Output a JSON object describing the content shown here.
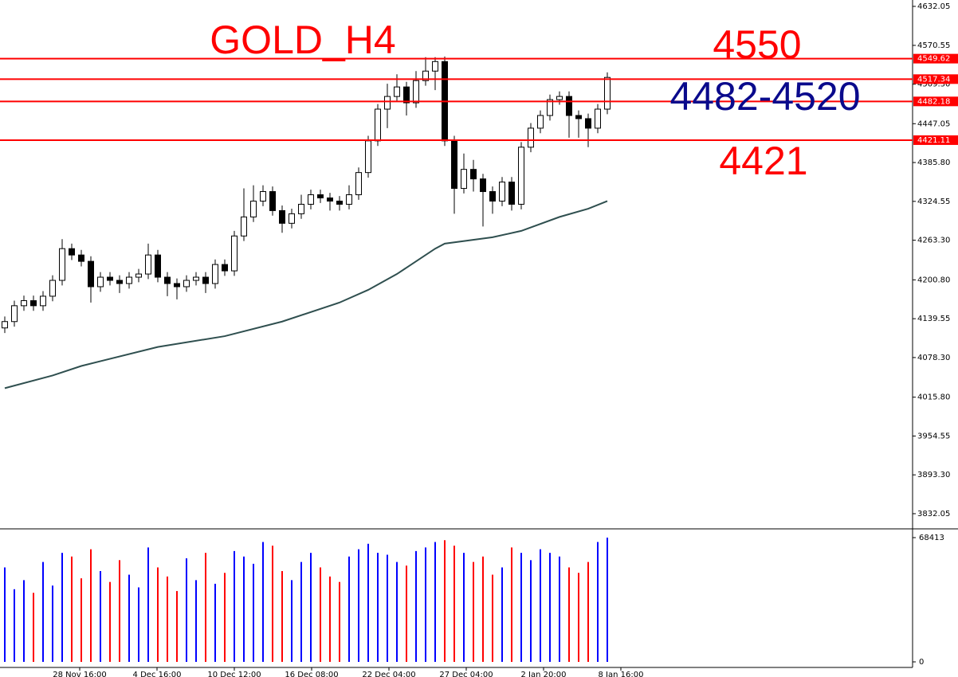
{
  "chart_data": {
    "type": "candlestick",
    "title": "GOLD_H4",
    "annotations": [
      {
        "text": "4550",
        "color": "#ff0000"
      },
      {
        "text": "4482-4520",
        "color": "#0a0a8c"
      },
      {
        "text": "4421",
        "color": "#ff0000"
      }
    ],
    "ylim": [
      3809.4,
      4642.1
    ],
    "yticks": [
      {
        "value": 4632.05,
        "label": "4632.05"
      },
      {
        "value": 4570.55,
        "label": "4570.55"
      },
      {
        "value": 4509.3,
        "label": "4509.30"
      },
      {
        "value": 4447.05,
        "label": "4447.05"
      },
      {
        "value": 4385.8,
        "label": "4385.80"
      },
      {
        "value": 4324.55,
        "label": "4324.55"
      },
      {
        "value": 4263.3,
        "label": "4263.30"
      },
      {
        "value": 4200.8,
        "label": "4200.80"
      },
      {
        "value": 4139.55,
        "label": "4139.55"
      },
      {
        "value": 4078.3,
        "label": "4078.30"
      },
      {
        "value": 4015.8,
        "label": "4015.80"
      },
      {
        "value": 3954.55,
        "label": "3954.55"
      },
      {
        "value": 3893.3,
        "label": "3893.30"
      },
      {
        "value": 3832.05,
        "label": "3832.05"
      }
    ],
    "levels": [
      4549.62,
      4517.34,
      4482.18,
      4421.11
    ],
    "level_color": "#ff0000",
    "x_labels": [
      "28 Nov 16:00",
      "4 Dec 16:00",
      "10 Dec 12:00",
      "16 Dec 08:00",
      "22 Dec 04:00",
      "27 Dec 04:00",
      "2 Jan 20:00",
      "8 Jan 16:00"
    ],
    "candles": [
      [
        4125,
        4143,
        4117,
        4135
      ],
      [
        4135,
        4168,
        4127,
        4160
      ],
      [
        4160,
        4176,
        4152,
        4168
      ],
      [
        4168,
        4176,
        4152,
        4160
      ],
      [
        4160,
        4183,
        4152,
        4175
      ],
      [
        4175,
        4208,
        4167,
        4200
      ],
      [
        4200,
        4265,
        4192,
        4250
      ],
      [
        4250,
        4258,
        4232,
        4240
      ],
      [
        4240,
        4248,
        4222,
        4230
      ],
      [
        4230,
        4238,
        4165,
        4190
      ],
      [
        4190,
        4213,
        4182,
        4205
      ],
      [
        4205,
        4213,
        4192,
        4200
      ],
      [
        4200,
        4208,
        4180,
        4195
      ],
      [
        4195,
        4213,
        4187,
        4205
      ],
      [
        4205,
        4218,
        4197,
        4210
      ],
      [
        4210,
        4258,
        4202,
        4240
      ],
      [
        4240,
        4248,
        4197,
        4205
      ],
      [
        4205,
        4213,
        4175,
        4195
      ],
      [
        4195,
        4203,
        4170,
        4190
      ],
      [
        4190,
        4208,
        4182,
        4200
      ],
      [
        4200,
        4213,
        4192,
        4205
      ],
      [
        4205,
        4213,
        4180,
        4195
      ],
      [
        4195,
        4233,
        4187,
        4225
      ],
      [
        4225,
        4233,
        4207,
        4215
      ],
      [
        4215,
        4278,
        4207,
        4270
      ],
      [
        4270,
        4345,
        4262,
        4300
      ],
      [
        4300,
        4350,
        4292,
        4325
      ],
      [
        4325,
        4350,
        4317,
        4340
      ],
      [
        4340,
        4348,
        4302,
        4310
      ],
      [
        4310,
        4318,
        4275,
        4290
      ],
      [
        4290,
        4313,
        4282,
        4305
      ],
      [
        4305,
        4335,
        4297,
        4320
      ],
      [
        4320,
        4343,
        4312,
        4335
      ],
      [
        4335,
        4343,
        4322,
        4330
      ],
      [
        4330,
        4338,
        4310,
        4325
      ],
      [
        4325,
        4333,
        4310,
        4320
      ],
      [
        4320,
        4350,
        4312,
        4335
      ],
      [
        4335,
        4378,
        4327,
        4370
      ],
      [
        4370,
        4428,
        4362,
        4420
      ],
      [
        4420,
        4478,
        4412,
        4470
      ],
      [
        4470,
        4510,
        4440,
        4490
      ],
      [
        4490,
        4525,
        4482,
        4505
      ],
      [
        4505,
        4513,
        4460,
        4480
      ],
      [
        4480,
        4530,
        4472,
        4515
      ],
      [
        4515,
        4552,
        4507,
        4530
      ],
      [
        4530,
        4552,
        4500,
        4545
      ],
      [
        4545,
        4553,
        4412,
        4420
      ],
      [
        4420,
        4428,
        4305,
        4345
      ],
      [
        4345,
        4400,
        4337,
        4375
      ],
      [
        4375,
        4390,
        4340,
        4360
      ],
      [
        4360,
        4368,
        4285,
        4340
      ],
      [
        4340,
        4348,
        4305,
        4325
      ],
      [
        4325,
        4363,
        4317,
        4355
      ],
      [
        4355,
        4363,
        4310,
        4320
      ],
      [
        4320,
        4418,
        4312,
        4410
      ],
      [
        4410,
        4448,
        4402,
        4440
      ],
      [
        4440,
        4468,
        4432,
        4460
      ],
      [
        4460,
        4493,
        4452,
        4485
      ],
      [
        4485,
        4498,
        4477,
        4490
      ],
      [
        4490,
        4498,
        4425,
        4460
      ],
      [
        4460,
        4468,
        4425,
        4455
      ],
      [
        4455,
        4463,
        4410,
        4440
      ],
      [
        4440,
        4478,
        4432,
        4470
      ],
      [
        4470,
        4528,
        4462,
        4520
      ]
    ],
    "ma": {
      "x": [
        0,
        5,
        8,
        16,
        23,
        29,
        35,
        38,
        41,
        45,
        46,
        51,
        54,
        58,
        61,
        63
      ],
      "values": [
        4030,
        4050,
        4065,
        4095,
        4112,
        4135,
        4165,
        4185,
        4210,
        4250,
        4258,
        4268,
        4278,
        4300,
        4313,
        4325
      ],
      "color": "#2f4f4f"
    },
    "volume": {
      "ylim": [
        0,
        73237
      ],
      "yticks": [
        68413,
        0
      ],
      "up_color": "#0000ff",
      "down_color": "#ff0000",
      "values": [
        52000,
        40000,
        45000,
        38000,
        55000,
        42000,
        60000,
        58000,
        46000,
        62000,
        50000,
        44000,
        56000,
        48000,
        41000,
        63000,
        52000,
        47000,
        39000,
        57000,
        45000,
        60000,
        43000,
        49000,
        61000,
        58000,
        54000,
        66000,
        64000,
        50000,
        45000,
        55000,
        60000,
        52000,
        47000,
        44000,
        58000,
        62000,
        65000,
        60000,
        59000,
        55000,
        53000,
        61000,
        63000,
        66000,
        67000,
        64000,
        60000,
        55000,
        58000,
        48000,
        52000,
        63000,
        60000,
        56000,
        62000,
        60000,
        58000,
        52000,
        49000,
        55000,
        66000,
        68413
      ]
    }
  }
}
